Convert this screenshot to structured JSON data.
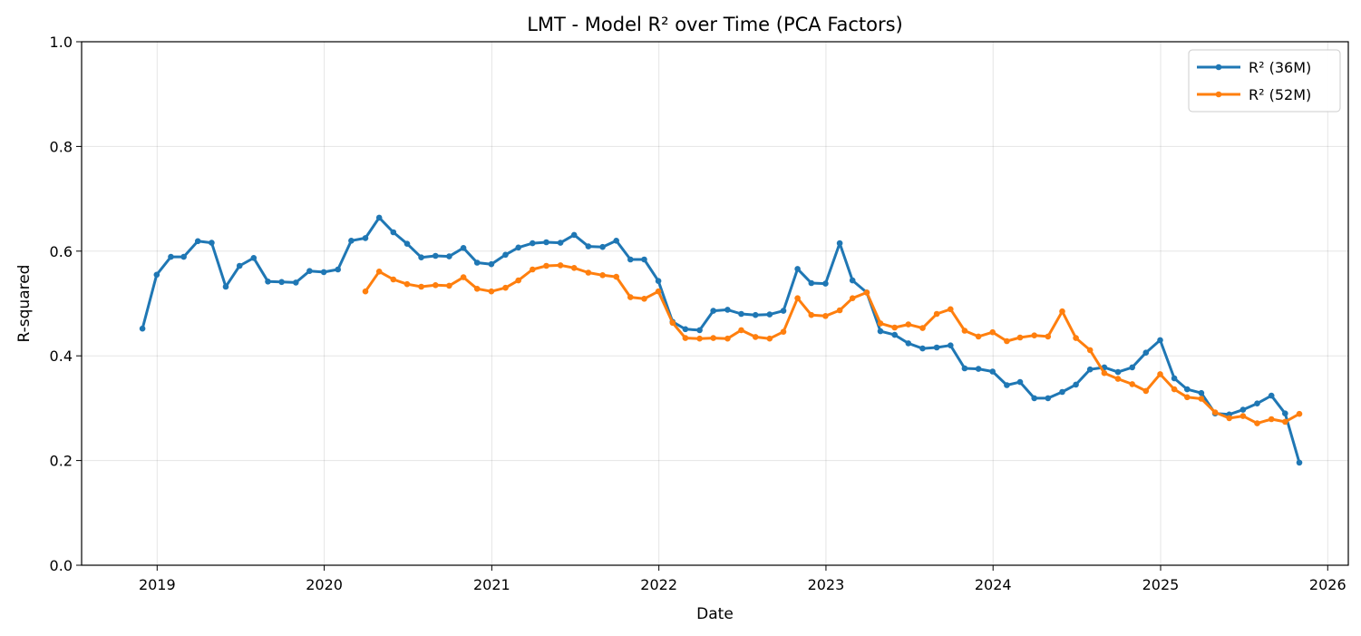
{
  "chart_data": {
    "type": "line",
    "title": "LMT - Model R² over Time (PCA Factors)",
    "xlabel": "Date",
    "ylabel": "R-squared",
    "ylim": [
      0,
      1
    ],
    "xlim": [
      "2018-07-20",
      "2026-02-15"
    ],
    "yticks": [
      "0.0",
      "0.2",
      "0.4",
      "0.6",
      "0.8",
      "1.0"
    ],
    "xticks": [
      "2019",
      "2020",
      "2021",
      "2022",
      "2023",
      "2024",
      "2025",
      "2026"
    ],
    "grid": true,
    "legend_position": "top-right",
    "series": [
      {
        "name": "R² (36M)",
        "color": "#1f77b4",
        "x": [
          "2018-11-30",
          "2018-12-31",
          "2019-01-31",
          "2019-02-28",
          "2019-03-31",
          "2019-04-30",
          "2019-05-31",
          "2019-06-30",
          "2019-07-31",
          "2019-08-31",
          "2019-09-30",
          "2019-10-31",
          "2019-11-30",
          "2019-12-31",
          "2020-01-31",
          "2020-02-29",
          "2020-03-31",
          "2020-04-30",
          "2020-05-31",
          "2020-06-30",
          "2020-07-31",
          "2020-08-31",
          "2020-09-30",
          "2020-10-31",
          "2020-11-30",
          "2020-12-31",
          "2021-01-31",
          "2021-02-28",
          "2021-03-31",
          "2021-04-30",
          "2021-05-31",
          "2021-06-30",
          "2021-07-31",
          "2021-08-31",
          "2021-09-30",
          "2021-10-31",
          "2021-11-30",
          "2021-12-31",
          "2022-01-31",
          "2022-02-28",
          "2022-03-31",
          "2022-04-30",
          "2022-05-31",
          "2022-06-30",
          "2022-07-31",
          "2022-08-31",
          "2022-09-30",
          "2022-10-31",
          "2022-11-30",
          "2022-12-31",
          "2023-01-31",
          "2023-02-28",
          "2023-03-31",
          "2023-04-30",
          "2023-05-31",
          "2023-06-30",
          "2023-07-31",
          "2023-08-31",
          "2023-09-30",
          "2023-10-31",
          "2023-11-30",
          "2023-12-31",
          "2024-01-31",
          "2024-02-29",
          "2024-03-31",
          "2024-04-30",
          "2024-05-31",
          "2024-06-30",
          "2024-07-31",
          "2024-08-31",
          "2024-09-30",
          "2024-10-31",
          "2024-11-30",
          "2024-12-31",
          "2025-01-31",
          "2025-02-28",
          "2025-03-31",
          "2025-04-30",
          "2025-05-31",
          "2025-06-30",
          "2025-07-31",
          "2025-08-31",
          "2025-09-30",
          "2025-10-31"
        ],
        "y": [
          0.452,
          0.555,
          0.589,
          0.589,
          0.619,
          0.616,
          0.532,
          0.572,
          0.587,
          0.542,
          0.541,
          0.54,
          0.562,
          0.56,
          0.565,
          0.62,
          0.625,
          0.664,
          0.636,
          0.614,
          0.588,
          0.591,
          0.59,
          0.606,
          0.578,
          0.575,
          0.593,
          0.607,
          0.615,
          0.617,
          0.616,
          0.631,
          0.609,
          0.608,
          0.62,
          0.584,
          0.584,
          0.543,
          0.465,
          0.451,
          0.449,
          0.486,
          0.488,
          0.48,
          0.478,
          0.479,
          0.486,
          0.566,
          0.539,
          0.538,
          0.615,
          0.544,
          0.521,
          0.447,
          0.44,
          0.424,
          0.414,
          0.416,
          0.42,
          0.376,
          0.375,
          0.37,
          0.344,
          0.35,
          0.319,
          0.319,
          0.331,
          0.345,
          0.374,
          0.378,
          0.369,
          0.378,
          0.406,
          0.43,
          0.357,
          0.336,
          0.329,
          0.29,
          0.288,
          0.297,
          0.309,
          0.324,
          0.29,
          0.196
        ]
      },
      {
        "name": "R² (52M)",
        "color": "#ff7f0e",
        "x": [
          "2020-03-31",
          "2020-04-30",
          "2020-05-31",
          "2020-06-30",
          "2020-07-31",
          "2020-08-31",
          "2020-09-30",
          "2020-10-31",
          "2020-11-30",
          "2020-12-31",
          "2021-01-31",
          "2021-02-28",
          "2021-03-31",
          "2021-04-30",
          "2021-05-31",
          "2021-06-30",
          "2021-07-31",
          "2021-08-31",
          "2021-09-30",
          "2021-10-31",
          "2021-11-30",
          "2021-12-31",
          "2022-01-31",
          "2022-02-28",
          "2022-03-31",
          "2022-04-30",
          "2022-05-31",
          "2022-06-30",
          "2022-07-31",
          "2022-08-31",
          "2022-09-30",
          "2022-10-31",
          "2022-11-30",
          "2022-12-31",
          "2023-01-31",
          "2023-02-28",
          "2023-03-31",
          "2023-04-30",
          "2023-05-31",
          "2023-06-30",
          "2023-07-31",
          "2023-08-31",
          "2023-09-30",
          "2023-10-31",
          "2023-11-30",
          "2023-12-31",
          "2024-01-31",
          "2024-02-29",
          "2024-03-31",
          "2024-04-30",
          "2024-05-31",
          "2024-06-30",
          "2024-07-31",
          "2024-08-31",
          "2024-09-30",
          "2024-10-31",
          "2024-11-30",
          "2024-12-31",
          "2025-01-31",
          "2025-02-28",
          "2025-03-31",
          "2025-04-30",
          "2025-05-31",
          "2025-06-30",
          "2025-07-31",
          "2025-08-31",
          "2025-09-30",
          "2025-10-31"
        ],
        "y": [
          0.523,
          0.561,
          0.546,
          0.537,
          0.532,
          0.535,
          0.534,
          0.55,
          0.528,
          0.523,
          0.53,
          0.544,
          0.565,
          0.572,
          0.573,
          0.568,
          0.559,
          0.554,
          0.551,
          0.512,
          0.509,
          0.523,
          0.463,
          0.434,
          0.433,
          0.434,
          0.433,
          0.449,
          0.436,
          0.433,
          0.446,
          0.51,
          0.478,
          0.476,
          0.487,
          0.51,
          0.521,
          0.462,
          0.454,
          0.46,
          0.453,
          0.48,
          0.489,
          0.448,
          0.437,
          0.445,
          0.428,
          0.435,
          0.439,
          0.437,
          0.485,
          0.434,
          0.411,
          0.367,
          0.356,
          0.346,
          0.333,
          0.365,
          0.336,
          0.321,
          0.318,
          0.292,
          0.281,
          0.285,
          0.271,
          0.279,
          0.274,
          0.289
        ]
      }
    ]
  }
}
